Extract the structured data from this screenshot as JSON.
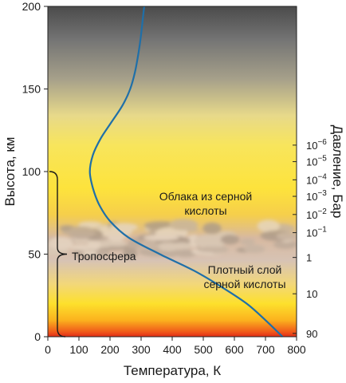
{
  "chart_data": {
    "type": "line",
    "title": "",
    "xlabel": "Температура, К",
    "ylabel": "Высота, км",
    "y2label": "Давление, Бар",
    "xlim": [
      0,
      800
    ],
    "ylim": [
      0,
      200
    ],
    "x_ticks": [
      "0",
      "100",
      "200",
      "300",
      "400",
      "500",
      "600",
      "700",
      "800"
    ],
    "y_ticks": [
      "0",
      "50",
      "100",
      "150",
      "200"
    ],
    "grid": false,
    "series": [
      {
        "color": "#1f6fa8",
        "points": [
          {
            "x": 755,
            "y": 0
          },
          {
            "x": 700,
            "y": 10
          },
          {
            "x": 640,
            "y": 20
          },
          {
            "x": 560,
            "y": 30
          },
          {
            "x": 470,
            "y": 40
          },
          {
            "x": 360,
            "y": 50
          },
          {
            "x": 260,
            "y": 60
          },
          {
            "x": 200,
            "y": 70
          },
          {
            "x": 165,
            "y": 80
          },
          {
            "x": 145,
            "y": 90
          },
          {
            "x": 135,
            "y": 100
          },
          {
            "x": 145,
            "y": 110
          },
          {
            "x": 170,
            "y": 120
          },
          {
            "x": 205,
            "y": 130
          },
          {
            "x": 240,
            "y": 140
          },
          {
            "x": 265,
            "y": 150
          },
          {
            "x": 280,
            "y": 160
          },
          {
            "x": 290,
            "y": 170
          },
          {
            "x": 298,
            "y": 180
          },
          {
            "x": 304,
            "y": 190
          },
          {
            "x": 310,
            "y": 200
          }
        ]
      }
    ],
    "pressure_axis": [
      {
        "label_base": "10",
        "label_exp": "−6",
        "altitude": 116
      },
      {
        "label_base": "10",
        "label_exp": "−5",
        "altitude": 106
      },
      {
        "label_base": "10",
        "label_exp": "−4",
        "altitude": 95
      },
      {
        "label_base": "10",
        "label_exp": "−3",
        "altitude": 85
      },
      {
        "label_base": "10",
        "label_exp": "−2",
        "altitude": 74
      },
      {
        "label_base": "10",
        "label_exp": "−1",
        "altitude": 63
      },
      {
        "label_base": "1",
        "label_exp": "",
        "altitude": 48
      },
      {
        "label_base": "10",
        "label_exp": "",
        "altitude": 26
      },
      {
        "label_base": "90",
        "label_exp": "",
        "altitude": 2
      }
    ],
    "annotations": {
      "clouds": [
        "Облака из серной",
        "кислоты"
      ],
      "dense_layer": [
        "Плотный слой",
        "серной кислоты"
      ],
      "troposphere": "Тропосфера"
    },
    "troposphere_range": [
      0,
      100
    ]
  }
}
